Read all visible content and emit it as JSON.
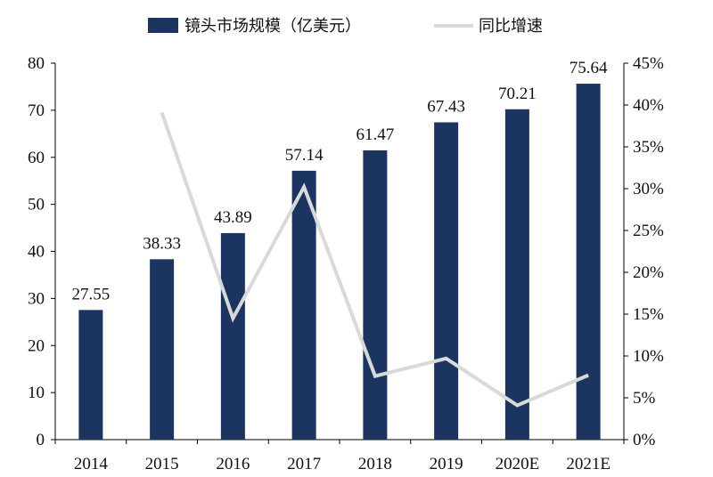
{
  "chart_data": {
    "type": "bar",
    "categories": [
      "2014",
      "2015",
      "2016",
      "2017",
      "2018",
      "2019",
      "2020E",
      "2021E"
    ],
    "series": [
      {
        "name": "镜头市场规模（亿美元）",
        "type": "bar",
        "axis": "left",
        "values": [
          27.55,
          38.33,
          43.89,
          57.14,
          61.47,
          67.43,
          70.21,
          75.64
        ],
        "data_labels": [
          "27.55",
          "38.33",
          "43.89",
          "57.14",
          "61.47",
          "67.43",
          "70.21",
          "75.64"
        ]
      },
      {
        "name": "同比增速",
        "type": "line",
        "axis": "right",
        "values": [
          null,
          39.1,
          14.5,
          30.2,
          7.6,
          9.7,
          4.1,
          7.7
        ]
      }
    ],
    "y_left": {
      "ylim": [
        0,
        80
      ],
      "ticks": [
        0,
        10,
        20,
        30,
        40,
        50,
        60,
        70,
        80
      ],
      "tick_labels": [
        "0",
        "10",
        "20",
        "30",
        "40",
        "50",
        "60",
        "70",
        "80"
      ]
    },
    "y_right": {
      "ylim": [
        0,
        45
      ],
      "ticks": [
        0,
        5,
        10,
        15,
        20,
        25,
        30,
        35,
        40,
        45
      ],
      "tick_labels": [
        "0%",
        "5%",
        "10%",
        "15%",
        "20%",
        "25%",
        "30%",
        "35%",
        "40%",
        "45%"
      ]
    },
    "legend": {
      "position": "top",
      "entries": [
        "镜头市场规模（亿美元）",
        "同比增速"
      ]
    },
    "colors": {
      "bar": "#1b3560",
      "line": "#d9d9d9",
      "axis": "#000000"
    },
    "grid": false
  }
}
